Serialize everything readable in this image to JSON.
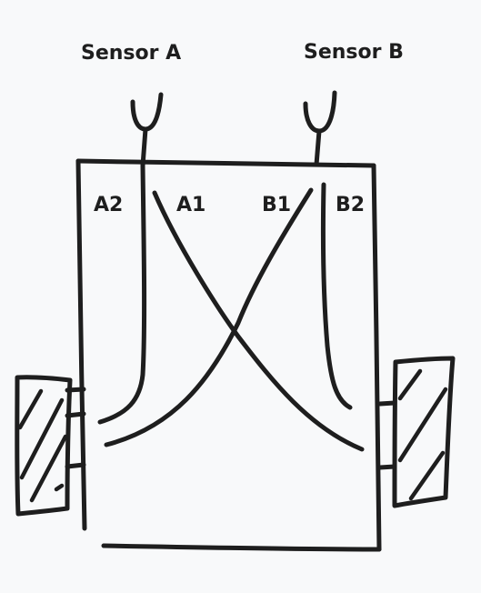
{
  "labels": {
    "sensor_a": "Sensor A",
    "sensor_b": "Sensor B",
    "a2": "A2",
    "a1": "A1",
    "b1": "B1",
    "b2": "B2"
  },
  "colors": {
    "background": "#f8f9fa",
    "ink": "#1e1e1e"
  }
}
